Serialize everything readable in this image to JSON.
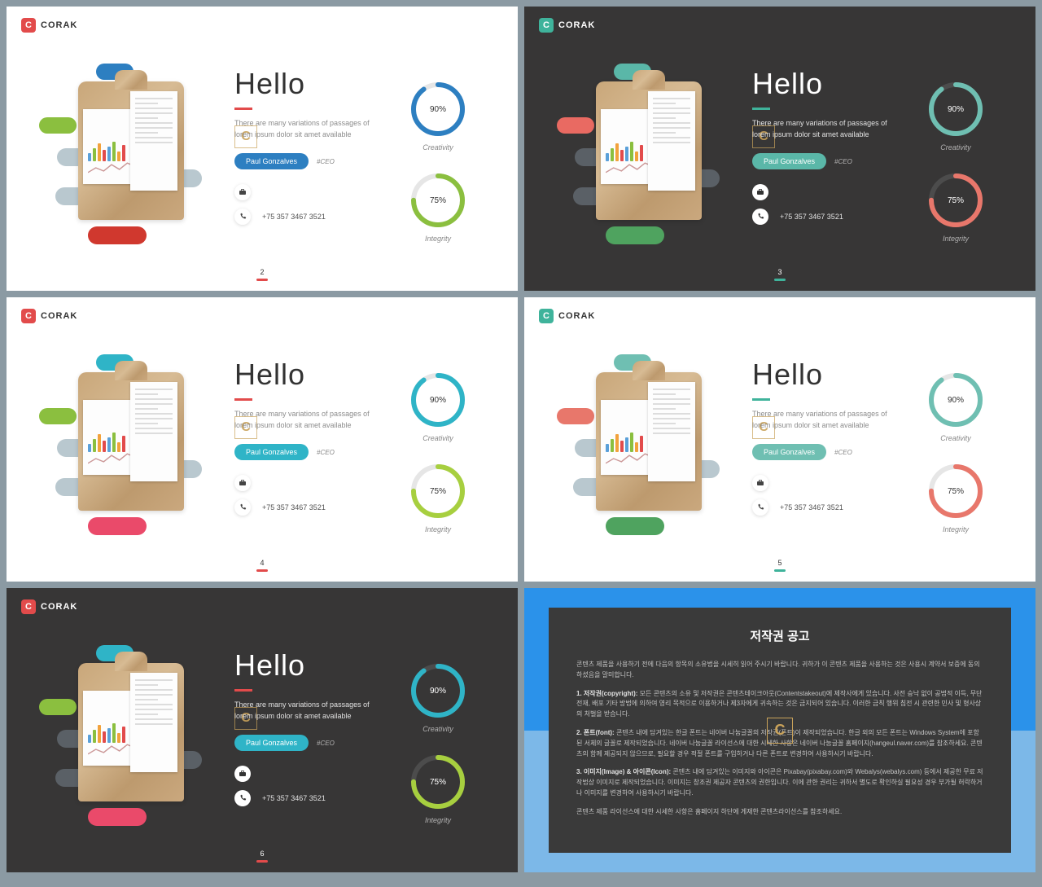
{
  "brand": {
    "letter": "C",
    "name": "CORAK"
  },
  "slides": [
    {
      "theme": "light",
      "logo_badge_color": "#e24b4b",
      "title": "Hello",
      "accent_color": "#e24b4b",
      "desc": "There are many variations of passages of lorem ipsum dolor sit amet available",
      "name": "Paul Gonzalves",
      "name_pill_color": "#2d7fc1",
      "role": "#CEO",
      "phone": "+75 357 3467 3521",
      "pills": {
        "top": "#2d7fc1",
        "left": "#8bbf3f",
        "bottom": "#d0382e",
        "mid": "#b9c8cf"
      },
      "ring1": {
        "pct": 90,
        "label": "Creativity",
        "color": "#2d7fc1",
        "track": "#e6e6e6"
      },
      "ring2": {
        "pct": 75,
        "label": "Integrity",
        "color": "#8bbf3f",
        "track": "#e6e6e6"
      },
      "page": "2",
      "page_bar_color": "#e24b4b"
    },
    {
      "theme": "dark",
      "logo_badge_color": "#3fb39b",
      "title": "Hello",
      "accent_color": "#3fb39b",
      "desc": "There are many variations of passages of lorem ipsum dolor sit amet available",
      "name": "Paul Gonzalves",
      "name_pill_color": "#5ab7a8",
      "role": "#CEO",
      "phone": "+75 357 3467 3521",
      "pills": {
        "top": "#5ab7a8",
        "left": "#e96a62",
        "bottom": "#4fa35f",
        "mid": "#5a6066"
      },
      "ring1": {
        "pct": 90,
        "label": "Creativity",
        "color": "#6fbfb2",
        "track": "#4c4c4c"
      },
      "ring2": {
        "pct": 75,
        "label": "Integrity",
        "color": "#e8776b",
        "track": "#4c4c4c"
      },
      "page": "3",
      "page_bar_color": "#3fb39b"
    },
    {
      "theme": "light",
      "logo_badge_color": "#e24b4b",
      "title": "Hello",
      "accent_color": "#e24b4b",
      "desc": "There are many variations of passages of lorem ipsum dolor sit amet available",
      "name": "Paul Gonzalves",
      "name_pill_color": "#2fb4c7",
      "role": "#CEO",
      "phone": "+75 357 3467 3521",
      "pills": {
        "top": "#2fb4c7",
        "left": "#8bbf3f",
        "bottom": "#ea4a6a",
        "mid": "#b9c8cf"
      },
      "ring1": {
        "pct": 90,
        "label": "Creativity",
        "color": "#2fb4c7",
        "track": "#e6e6e6"
      },
      "ring2": {
        "pct": 75,
        "label": "Integrity",
        "color": "#a7cf3f",
        "track": "#e6e6e6"
      },
      "page": "4",
      "page_bar_color": "#e24b4b"
    },
    {
      "theme": "light",
      "logo_badge_color": "#3fb39b",
      "title": "Hello",
      "accent_color": "#3fb39b",
      "desc": "There are many variations of passages of lorem ipsum dolor sit amet available",
      "name": "Paul Gonzalves",
      "name_pill_color": "#6fbfb2",
      "role": "#CEO",
      "phone": "+75 357 3467 3521",
      "pills": {
        "top": "#6fbfb2",
        "left": "#e8776b",
        "bottom": "#4fa35f",
        "mid": "#b9c8cf"
      },
      "ring1": {
        "pct": 90,
        "label": "Creativity",
        "color": "#6fbfb2",
        "track": "#e6e6e6"
      },
      "ring2": {
        "pct": 75,
        "label": "Integrity",
        "color": "#e8776b",
        "track": "#e6e6e6"
      },
      "page": "5",
      "page_bar_color": "#3fb39b"
    },
    {
      "theme": "dark",
      "logo_badge_color": "#e24b4b",
      "title": "Hello",
      "accent_color": "#e24b4b",
      "desc": "There are many variations of passages of lorem ipsum dolor sit amet available",
      "name": "Paul Gonzalves",
      "name_pill_color": "#2fb4c7",
      "role": "#CEO",
      "phone": "+75 357 3467 3521",
      "pills": {
        "top": "#2fb4c7",
        "left": "#8bbf3f",
        "bottom": "#ea4a6a",
        "mid": "#5a6066"
      },
      "ring1": {
        "pct": 90,
        "label": "Creativity",
        "color": "#2fb4c7",
        "track": "#4c4c4c"
      },
      "ring2": {
        "pct": 75,
        "label": "Integrity",
        "color": "#a7cf3f",
        "track": "#4c4c4c"
      },
      "page": "6",
      "page_bar_color": "#e24b4b"
    }
  ],
  "bar_colors": [
    "#5aa0d9",
    "#8bbf3f",
    "#f2a23c",
    "#e24b4b",
    "#5aa0d9",
    "#8bbf3f",
    "#f2a23c",
    "#e24b4b"
  ],
  "copyright": {
    "title": "저작권 공고",
    "p0": "콘텐츠 제품을 사용하기 전에 다음의 항목의 소유법을 시세히 읽어 주시기 바랍니다. 귀하가 이 콘텐츠 제품을 사용하는 것은 사용시 계약서 보증에 동의하셨음을 말미합니다.",
    "p1": "1. 저작권(copyright): 모든 콘텐츠의 소유 및 저작권은 콘텐츠테이크아웃(Contentstakeout)에 제작사에게 있습니다. 사전 승낙 없이 공법적 이득, 무단전재, 배포 기타 방법에 의하여 영리 목적으로 이용하거나 제3자에게 귀속하는 것은 금지되어 있습니다. 이러한 금칙 행위 침전 시 관련한 민사 및 형사상의 처벌을 받습니다.",
    "p2": "2. 폰트(font): 콘텐츠 내에 담겨있는 한글 폰트는 네이버 나눔글꼴의 저작권(폰트)이 제작되었습니다. 한글 외의 모든 폰트는 Windows System에 포함된 서체의 글꼴로 제작되었습니다. 네이버 나눔글꼴 라이선스에 대한 시세한 사항은 네이버 나눔글꼴 홈페이지(hangeul.naver.com)를 참조하세요. 콘텐츠의 함께 제공되지 않으므로, 필요할 경우 적절 폰트를 구입하거나 다른 폰트로 변경하여 사용하시기 바랍니다.",
    "p3": "3. 이미지(Image) & 아이콘(Icon): 콘텐츠 내에 담겨있는 이미지와 아이콘은 Pixabay(pixabay.com)와 Webalys(webalys.com) 등에서 제공한 무료 저작법상 이미지로 제작되었습니다. 이미지는 창조권 제공자 콘텐츠의 권한입니다. 이에 관한 권리는 귀하서 별도로 확인하실 필요성 경우 부가될 허락하거나 이미지를 변경하여 사용하시기 바랍니다.",
    "p4": "콘텐츠 제품 라이선스에 대한 시세한 사항은 홈페이지 하단에 게재한 콘텐츠라이선스를 참조하세요."
  }
}
